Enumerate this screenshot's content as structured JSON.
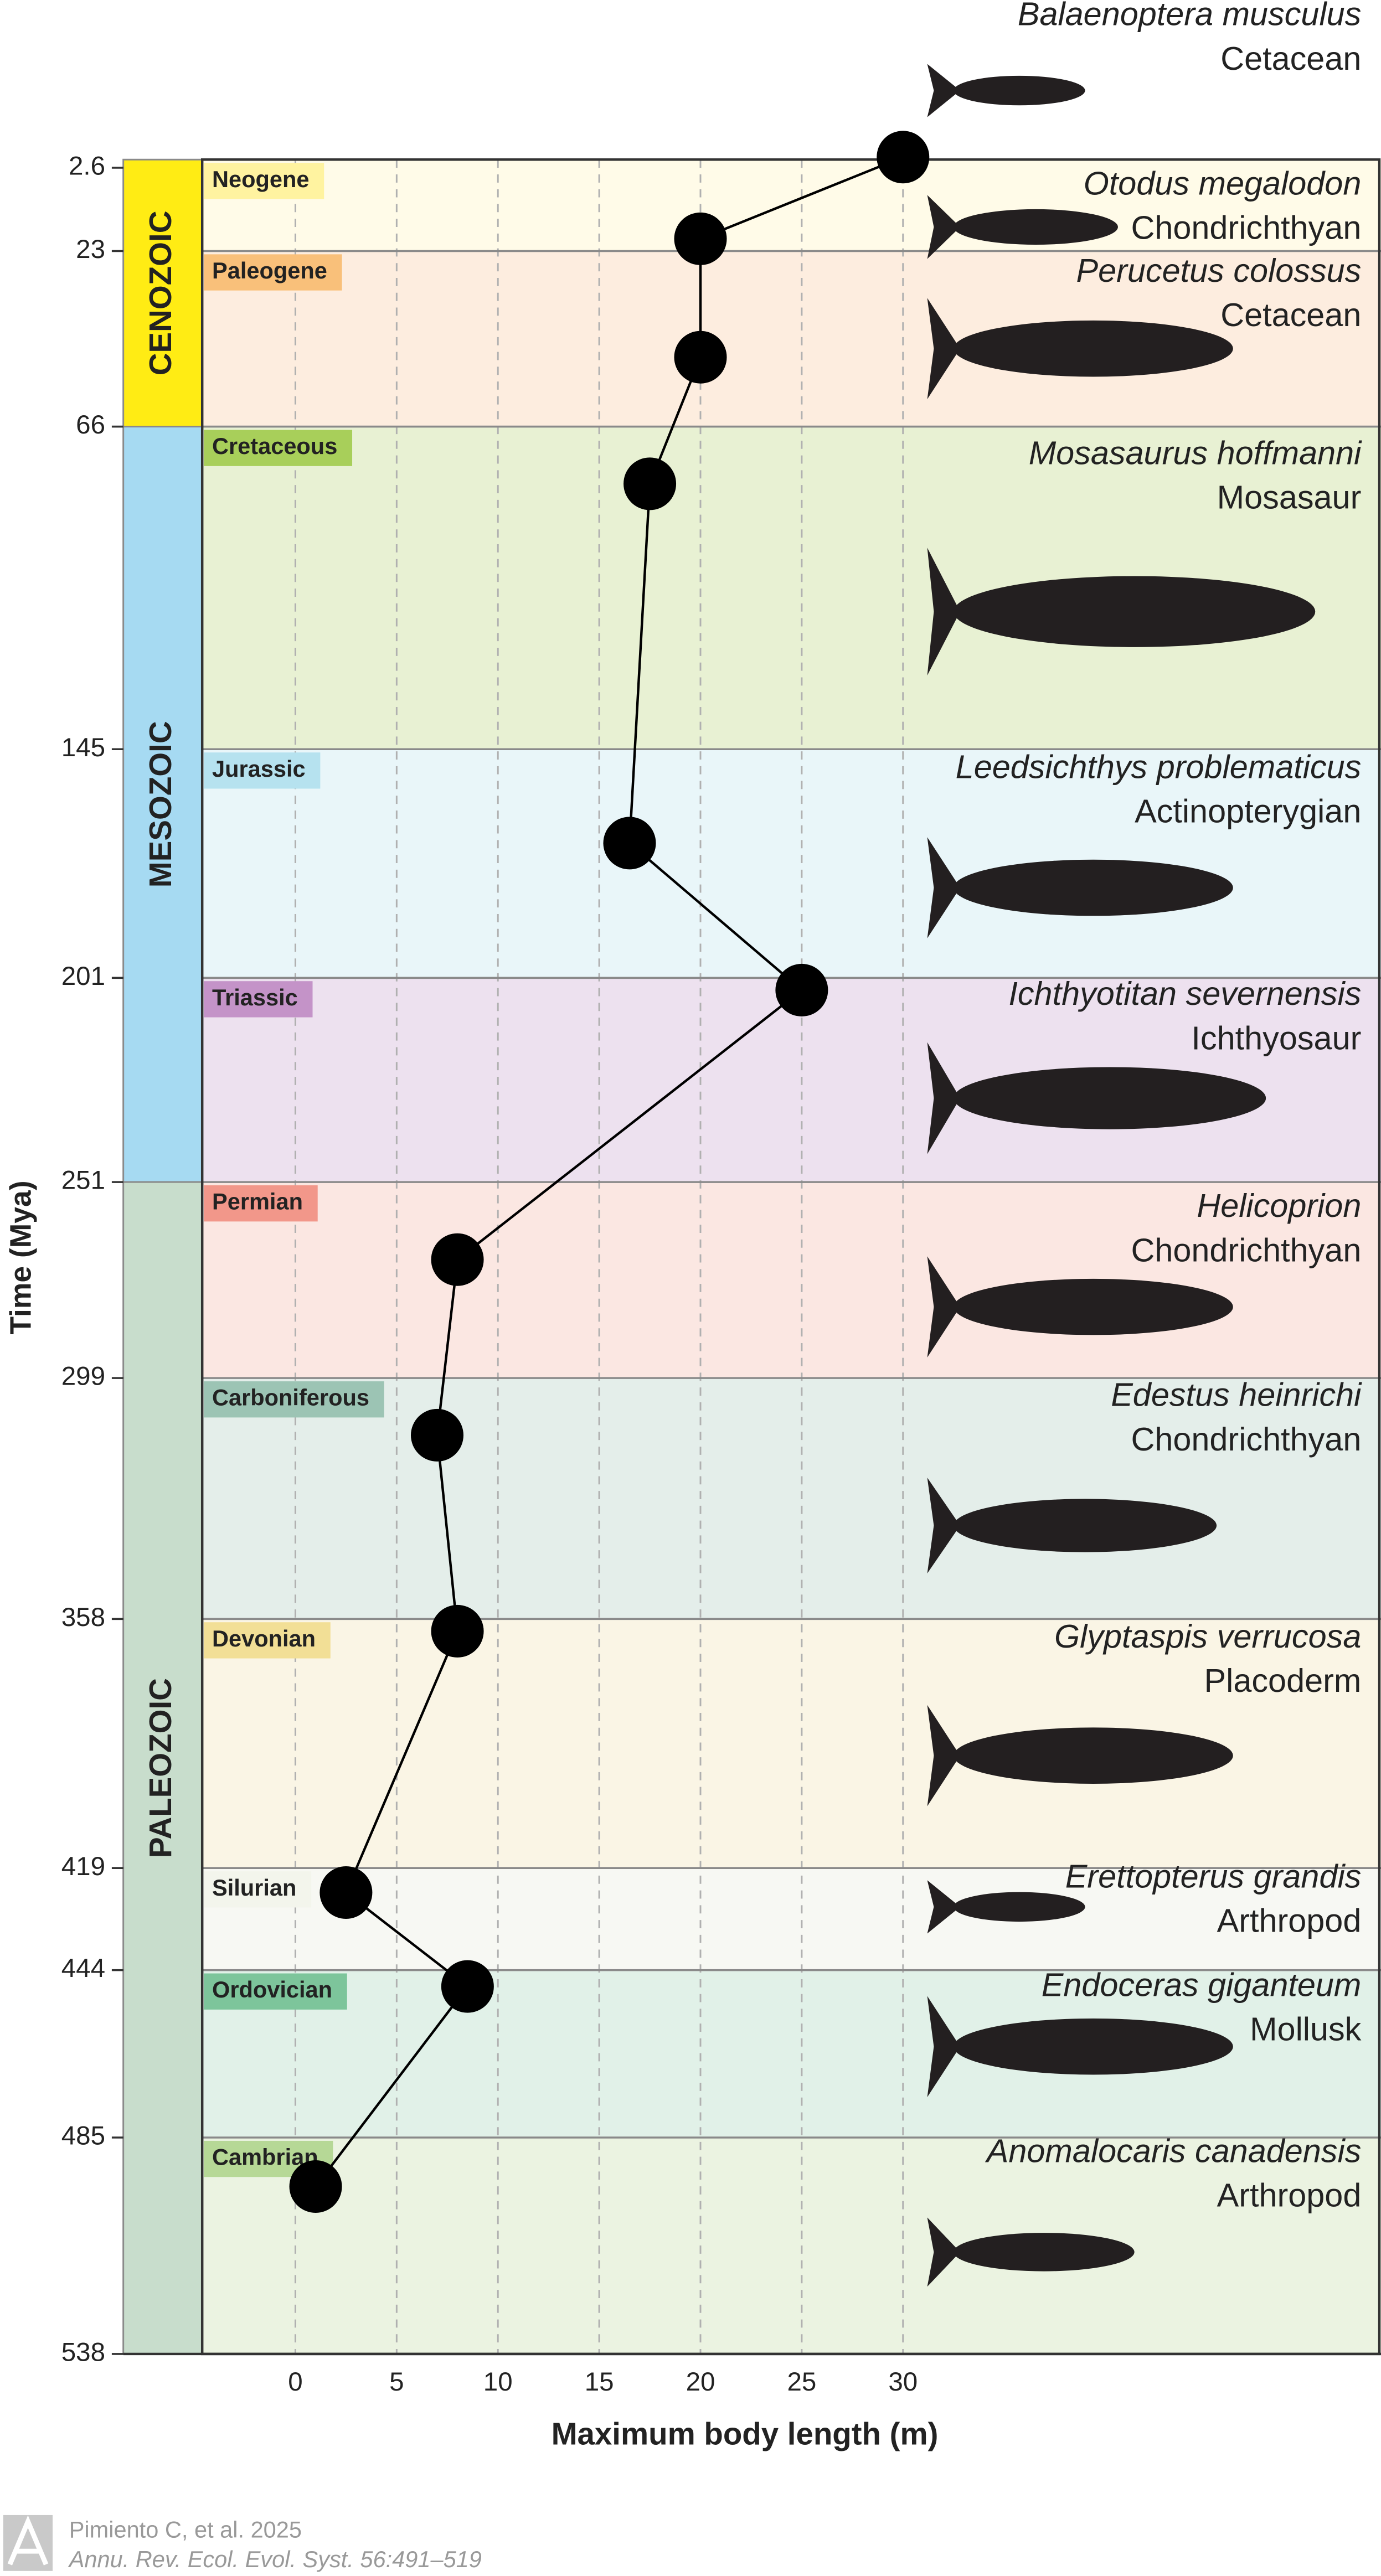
{
  "chart_data": {
    "type": "scatter",
    "xlabel": "Maximum body length (m)",
    "ylabel": "Time (Mya)",
    "xlim": [
      -4.6,
      53.6
    ],
    "ylim": [
      0,
      538
    ],
    "y_inverted": true,
    "grid": true,
    "xticks": [
      0,
      5,
      10,
      15,
      20,
      25,
      30
    ],
    "yticks": [
      2.6,
      23,
      66,
      145,
      201,
      251,
      299,
      358,
      419,
      444,
      485,
      538
    ],
    "series": [
      {
        "color": "#000000",
        "x": [
          30,
          20,
          20,
          17.5,
          16.5,
          25,
          8,
          7,
          8,
          2.5,
          8.5,
          1
        ],
        "values": [
          0,
          20,
          49,
          80,
          168,
          204,
          270,
          313,
          361,
          425,
          448,
          497
        ],
        "species": [
          "Balaenoptera musculus",
          "Otodus megalodon",
          "Perucetus colossus",
          "Mosasaurus hoffmanni",
          "Leedsichthys problematicus",
          "Ichthyotitan severnensis",
          "Helicoprion",
          "Edestus heinrichi",
          "Glyptaspis verrucosa",
          "Erettopterus grandis",
          "Endoceras giganteum",
          "Anomalocaris canadensis"
        ],
        "groups": [
          "Cetacean",
          "Chondrichthyan",
          "Cetacean",
          "Mosasaur",
          "Actinopterygian",
          "Ichthyosaur",
          "Chondrichthyan",
          "Chondrichthyan",
          "Placoderm",
          "Arthropod",
          "Mollusk",
          "Arthropod"
        ]
      }
    ],
    "periods": [
      {
        "name": "Neogene",
        "color": "#fffbe8",
        "label_color": "#fff3a0"
      },
      {
        "name": "Paleogene",
        "color": "#fdeddf",
        "label_color": "#f9c07a"
      },
      {
        "name": "Cretaceous",
        "color": "#e8f1d3",
        "label_color": "#a8cf5a"
      },
      {
        "name": "Jurassic",
        "color": "#e9f6f9",
        "label_color": "#b6e2ef"
      },
      {
        "name": "Triassic",
        "color": "#ede1ef",
        "label_color": "#c493c8"
      },
      {
        "name": "Permian",
        "color": "#fbe7e2",
        "label_color": "#f2978a"
      },
      {
        "name": "Carboniferous",
        "color": "#e4eeea",
        "label_color": "#9cc4b4"
      },
      {
        "name": "Devonian",
        "color": "#faf5e5",
        "label_color": "#f2df96"
      },
      {
        "name": "Silurian",
        "color": "#f7f8f3",
        "label_color": "#f3f5ec"
      },
      {
        "name": "Ordovician",
        "color": "#e1f1e8",
        "label_color": "#7dc59b"
      },
      {
        "name": "Cambrian",
        "color": "#ebf3e1",
        "label_color": "#b6d896"
      }
    ],
    "eras": [
      {
        "name": "CENOZOIC",
        "color": "#ffec14"
      },
      {
        "name": "MESOZOIC",
        "color": "#a6daf2"
      },
      {
        "name": "PALEOZOIC",
        "color": "#c8ddcc"
      }
    ]
  },
  "source": [
    "Pimiento C, et al. 2025",
    "Annu. Rev. Ecol. Evol. Syst. 56:491–519"
  ]
}
